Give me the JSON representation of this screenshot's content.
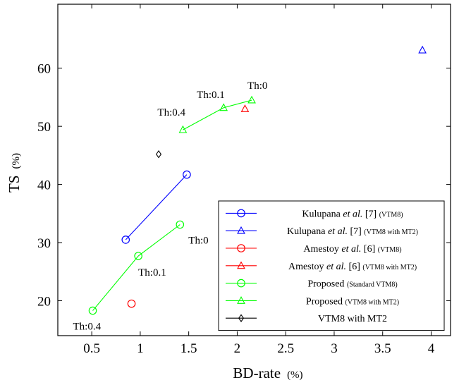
{
  "chart_data": {
    "type": "scatter",
    "xlabel": "BD-rate",
    "xlabel_unit": "(%)",
    "ylabel": "TS",
    "ylabel_unit": "(%)",
    "xlim": [
      0.15,
      4.2
    ],
    "ylim": [
      14,
      71
    ],
    "xticks": [
      {
        "value": 0.5,
        "label": "0.5"
      },
      {
        "value": 1,
        "label": "1"
      },
      {
        "value": 1.5,
        "label": "1.5"
      },
      {
        "value": 2,
        "label": "2"
      },
      {
        "value": 2.5,
        "label": "2.5"
      },
      {
        "value": 3,
        "label": "3"
      },
      {
        "value": 3.5,
        "label": "3.5"
      },
      {
        "value": 4,
        "label": "4"
      }
    ],
    "yticks": [
      {
        "value": 20,
        "label": "20"
      },
      {
        "value": 30,
        "label": "30"
      },
      {
        "value": 40,
        "label": "40"
      },
      {
        "value": 50,
        "label": "50"
      },
      {
        "value": 60,
        "label": "60"
      }
    ],
    "grid": false,
    "legend_position": "bottom-right",
    "series": [
      {
        "name": "Kulupana et al. [7]",
        "legend_parts": [
          {
            "text": "Kulupana ",
            "style": "normal"
          },
          {
            "text": "et al.",
            "style": "italic"
          },
          {
            "text": " [7] ",
            "style": "normal"
          },
          {
            "text": "(VTM8)",
            "style": "small"
          }
        ],
        "color": "#0000ff",
        "marker": "circle",
        "line": true,
        "points": [
          {
            "x": 0.85,
            "y": 30.5
          },
          {
            "x": 1.48,
            "y": 41.7
          }
        ]
      },
      {
        "name": "Kulupana et al. [7]",
        "legend_parts": [
          {
            "text": "Kulupana ",
            "style": "normal"
          },
          {
            "text": "et al.",
            "style": "italic"
          },
          {
            "text": " [7] ",
            "style": "normal"
          },
          {
            "text": "(VTM8 with MT2)",
            "style": "small"
          }
        ],
        "color": "#0000ff",
        "marker": "triangle",
        "line": false,
        "points": [
          {
            "x": 3.91,
            "y": 63.1
          }
        ]
      },
      {
        "name": "Amestoy et al. [6]",
        "legend_parts": [
          {
            "text": "Amestoy ",
            "style": "normal"
          },
          {
            "text": "et al.",
            "style": "italic"
          },
          {
            "text": " [6] ",
            "style": "normal"
          },
          {
            "text": "(VTM8)",
            "style": "small"
          }
        ],
        "color": "#ff0000",
        "marker": "circle",
        "line": false,
        "points": [
          {
            "x": 0.91,
            "y": 19.5
          }
        ]
      },
      {
        "name": "Amestoy et al. [6]",
        "legend_parts": [
          {
            "text": "Amestoy ",
            "style": "normal"
          },
          {
            "text": "et al.",
            "style": "italic"
          },
          {
            "text": " [6] ",
            "style": "normal"
          },
          {
            "text": "(VTM8 with MT2)",
            "style": "small"
          }
        ],
        "color": "#ff0000",
        "marker": "triangle",
        "line": false,
        "points": [
          {
            "x": 2.08,
            "y": 53.0
          }
        ]
      },
      {
        "name": "Proposed",
        "legend_parts": [
          {
            "text": "Proposed ",
            "style": "normal"
          },
          {
            "text": "(Standard VTM8)",
            "style": "small"
          }
        ],
        "color": "#00ff00",
        "marker": "circle",
        "line": true,
        "points": [
          {
            "x": 0.51,
            "y": 18.3,
            "label": "Th:0.4"
          },
          {
            "x": 0.98,
            "y": 27.7,
            "label": "Th:0.1"
          },
          {
            "x": 1.41,
            "y": 33.1,
            "label": "Th:0"
          }
        ]
      },
      {
        "name": "Proposed",
        "legend_parts": [
          {
            "text": "Proposed ",
            "style": "normal"
          },
          {
            "text": "(VTM8 with MT2)",
            "style": "small"
          }
        ],
        "color": "#00ff00",
        "marker": "triangle",
        "line": true,
        "points": [
          {
            "x": 1.44,
            "y": 49.4,
            "label": "Th:0.4"
          },
          {
            "x": 1.86,
            "y": 53.2,
            "label": "Th:0.1"
          },
          {
            "x": 2.15,
            "y": 54.5,
            "label": "Th:0"
          }
        ]
      },
      {
        "name": "VTM8 with MT2",
        "legend_parts": [
          {
            "text": "VTM8 with MT2",
            "style": "normal"
          }
        ],
        "color": "#000000",
        "marker": "diamond",
        "line": false,
        "points": [
          {
            "x": 1.19,
            "y": 45.2
          }
        ]
      }
    ]
  }
}
